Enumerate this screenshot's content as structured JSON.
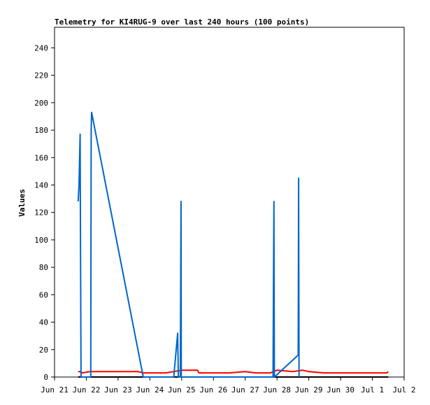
{
  "chart_data": {
    "type": "line",
    "title": "Telemetry for KI4RUG-9 over last 240 hours (100 points)",
    "xlabel": "",
    "ylabel": "Values",
    "ylim": [
      0,
      255
    ],
    "yticks": [
      0,
      20,
      40,
      60,
      80,
      100,
      120,
      140,
      160,
      180,
      200,
      220,
      240
    ],
    "xlim": [
      "2023-06-21T00:00",
      "2023-07-02T00:00"
    ],
    "xticks": [
      {
        "t": "2023-06-21T00:00",
        "label": "Jun 21"
      },
      {
        "t": "2023-06-22T00:00",
        "label": "Jun 22"
      },
      {
        "t": "2023-06-23T00:00",
        "label": "Jun 23"
      },
      {
        "t": "2023-06-24T00:00",
        "label": "Jun 24"
      },
      {
        "t": "2023-06-25T00:00",
        "label": "Jun 25"
      },
      {
        "t": "2023-06-26T00:00",
        "label": "Jun 26"
      },
      {
        "t": "2023-06-27T00:00",
        "label": "Jun 27"
      },
      {
        "t": "2023-06-28T00:00",
        "label": "Jun 28"
      },
      {
        "t": "2023-06-29T00:00",
        "label": "Jun 29"
      },
      {
        "t": "2023-06-30T00:00",
        "label": "Jun 30"
      },
      {
        "t": "2023-07-01T00:00",
        "label": "Jul 1"
      },
      {
        "t": "2023-07-02T00:00",
        "label": "Jul 2"
      }
    ],
    "grid": false,
    "series": [
      {
        "color": "#000000",
        "points": [
          [
            "2023-06-21T17:50",
            0
          ],
          [
            "2023-07-01T12:00",
            0
          ]
        ]
      },
      {
        "color": "#ff0000",
        "points": [
          [
            "2023-06-21T17:50",
            4
          ],
          [
            "2023-06-21T19:30",
            4
          ],
          [
            "2023-06-21T21:00",
            3
          ],
          [
            "2023-06-22T03:00",
            4
          ],
          [
            "2023-06-22T12:00",
            4
          ],
          [
            "2023-06-23T00:00",
            4
          ],
          [
            "2023-06-23T15:00",
            4
          ],
          [
            "2023-06-23T19:00",
            3
          ],
          [
            "2023-06-24T00:00",
            3
          ],
          [
            "2023-06-24T12:00",
            3
          ],
          [
            "2023-06-24T18:00",
            4
          ],
          [
            "2023-06-25T00:00",
            5
          ],
          [
            "2023-06-25T12:00",
            5
          ],
          [
            "2023-06-25T13:00",
            3
          ],
          [
            "2023-06-26T00:00",
            3
          ],
          [
            "2023-06-26T12:00",
            3
          ],
          [
            "2023-06-27T00:00",
            4
          ],
          [
            "2023-06-27T08:00",
            3
          ],
          [
            "2023-06-27T19:00",
            3
          ],
          [
            "2023-06-28T00:00",
            5
          ],
          [
            "2023-06-28T12:00",
            4
          ],
          [
            "2023-06-28T19:00",
            5
          ],
          [
            "2023-06-29T00:00",
            4
          ],
          [
            "2023-06-29T12:00",
            3
          ],
          [
            "2023-06-30T00:00",
            3
          ],
          [
            "2023-06-30T12:00",
            3
          ],
          [
            "2023-07-01T00:00",
            3
          ],
          [
            "2023-07-01T11:00",
            3
          ],
          [
            "2023-07-01T12:00",
            4
          ]
        ]
      },
      {
        "color": "#0066cc",
        "points": [
          [
            "2023-06-21T17:50",
            128
          ],
          [
            "2023-06-21T18:30",
            140
          ],
          [
            "2023-06-21T19:20",
            177
          ],
          [
            "2023-06-21T19:40",
            90
          ],
          [
            "2023-06-21T20:00",
            0
          ],
          [
            "2023-06-22T03:20",
            0
          ],
          [
            "2023-06-22T03:40",
            180
          ],
          [
            "2023-06-22T04:00",
            193
          ],
          [
            "2023-06-23T19:00",
            0
          ],
          [
            "2023-06-24T18:00",
            0
          ],
          [
            "2023-06-24T21:00",
            32
          ],
          [
            "2023-06-24T21:30",
            0
          ],
          [
            "2023-06-24T23:00",
            0
          ],
          [
            "2023-06-24T23:15",
            64
          ],
          [
            "2023-06-24T23:30",
            128
          ],
          [
            "2023-06-24T23:45",
            0
          ],
          [
            "2023-06-27T21:00",
            0
          ],
          [
            "2023-06-27T21:20",
            64
          ],
          [
            "2023-06-27T21:40",
            128
          ],
          [
            "2023-06-27T22:00",
            0
          ],
          [
            "2023-06-28T16:00",
            16
          ],
          [
            "2023-06-28T16:20",
            145
          ],
          [
            "2023-06-28T16:40",
            0
          ]
        ]
      }
    ]
  }
}
